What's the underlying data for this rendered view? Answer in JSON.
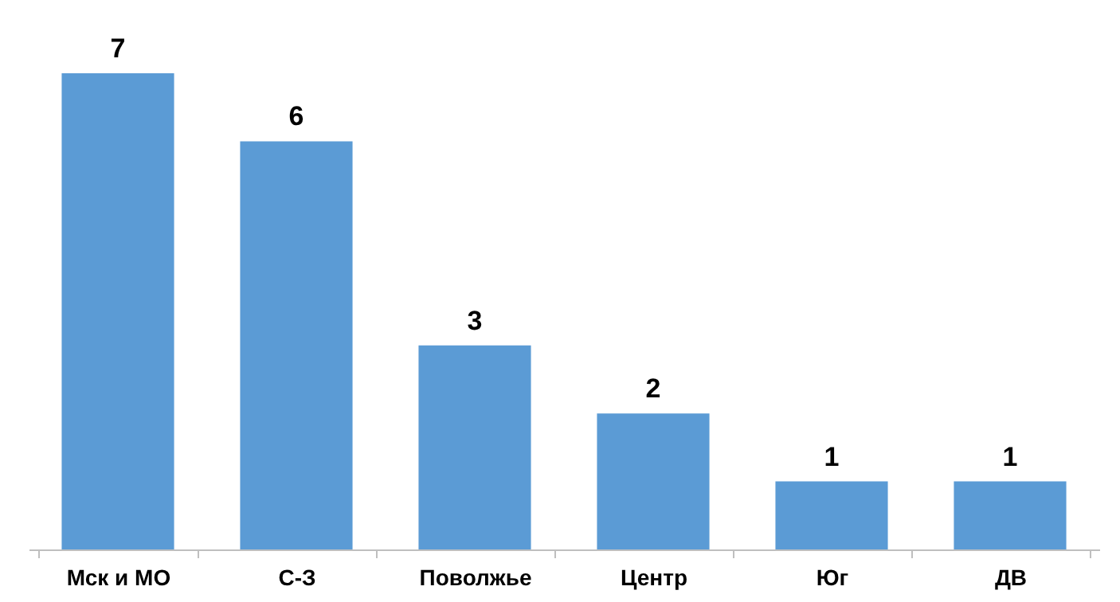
{
  "chart_data": {
    "type": "bar",
    "categories": [
      "Мск и МО",
      "С-З",
      "Поволжье",
      "Центр",
      "Юг",
      "ДВ"
    ],
    "values": [
      7,
      6,
      3,
      2,
      1,
      1
    ],
    "color": "#5b9bd5",
    "data_labels": true
  }
}
